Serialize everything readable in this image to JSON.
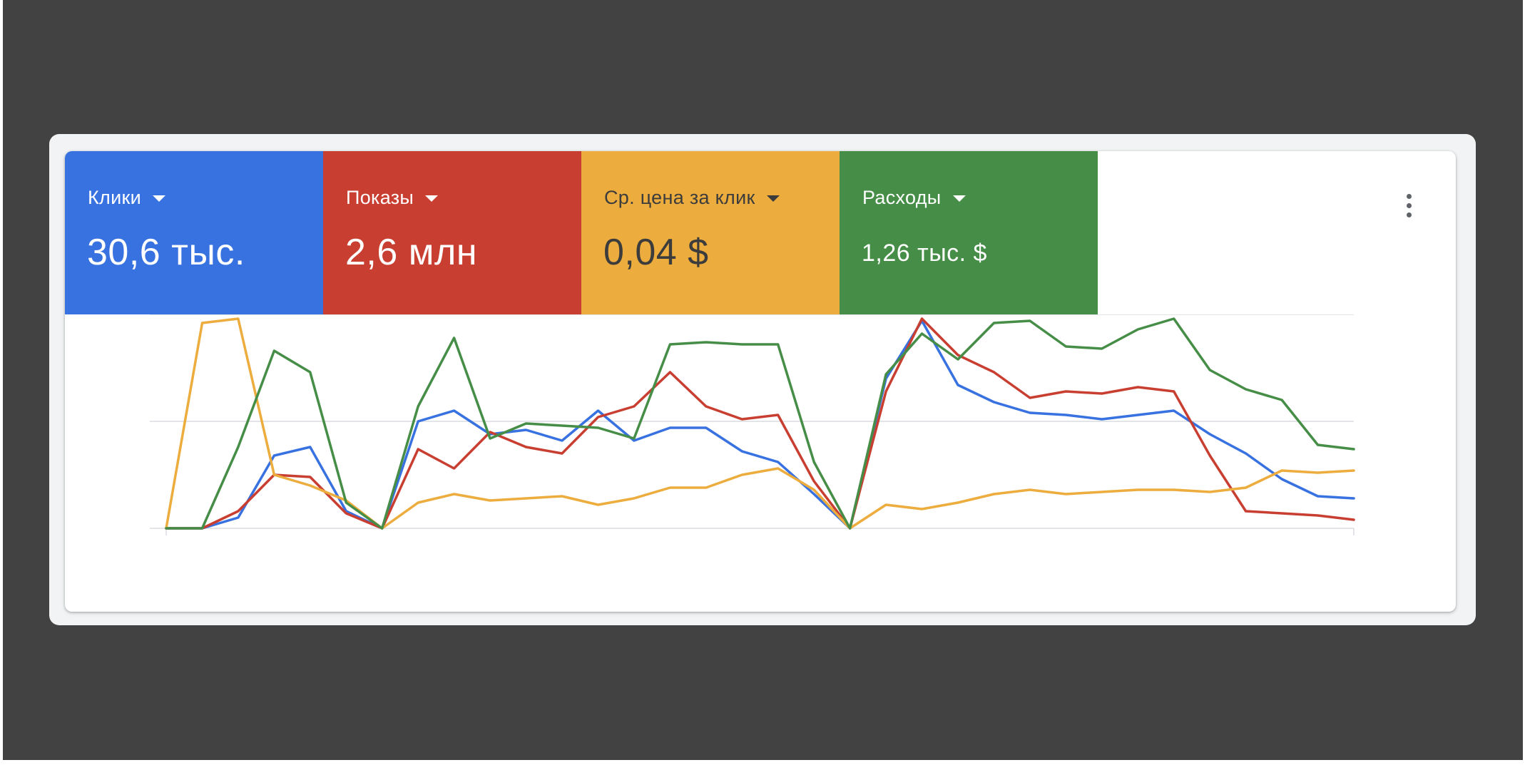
{
  "metrics": [
    {
      "label": "Клики",
      "value": "30,6 тыс.",
      "bg": "#3871e0",
      "fg": "#ffffff"
    },
    {
      "label": "Показы",
      "value": "2,6 млн",
      "bg": "#c83f31",
      "fg": "#ffffff"
    },
    {
      "label": "Ср. цена за клик",
      "value": "0,04 $",
      "bg": "#ecad3e",
      "fg": "#3c3c3c"
    },
    {
      "label": "Расходы",
      "value": "1,26 тыс. $",
      "bg": "#468e47",
      "fg": "#ffffff"
    }
  ],
  "menu": {
    "icon": "more-vert-icon"
  },
  "chart_data": {
    "type": "line",
    "ylim": [
      0,
      100
    ],
    "grid": true,
    "x": [
      1,
      2,
      3,
      4,
      5,
      6,
      7,
      8,
      9,
      10,
      11,
      12,
      13,
      14,
      15,
      16,
      17,
      18,
      19,
      20,
      21,
      22,
      23,
      24,
      25,
      26,
      27,
      28,
      29,
      30,
      31,
      32,
      33,
      34
    ],
    "series": [
      {
        "color": "#3871e0",
        "values": [
          0,
          0,
          5,
          34,
          38,
          8,
          0,
          50,
          55,
          44,
          46,
          41,
          55,
          41,
          47,
          47,
          36,
          31,
          16,
          0,
          70,
          97,
          67,
          59,
          54,
          53,
          51,
          53,
          55,
          44,
          35,
          23,
          15,
          14
        ]
      },
      {
        "color": "#c83f31",
        "values": [
          0,
          0,
          8,
          25,
          24,
          7,
          0,
          37,
          28,
          45,
          38,
          35,
          52,
          57,
          73,
          57,
          51,
          53,
          22,
          0,
          64,
          98,
          81,
          73,
          61,
          64,
          63,
          66,
          64,
          34,
          8,
          7,
          6,
          4
        ]
      },
      {
        "color": "#ecad3e",
        "values": [
          0,
          96,
          98,
          25,
          20,
          13,
          0,
          12,
          16,
          13,
          14,
          15,
          11,
          14,
          19,
          19,
          25,
          28,
          18,
          0,
          11,
          9,
          12,
          16,
          18,
          16,
          17,
          18,
          18,
          17,
          19,
          27,
          26,
          27
        ]
      },
      {
        "color": "#468e47",
        "values": [
          0,
          0,
          38,
          83,
          73,
          12,
          0,
          57,
          89,
          42,
          49,
          48,
          47,
          42,
          86,
          87,
          86,
          86,
          31,
          0,
          72,
          91,
          79,
          96,
          97,
          85,
          84,
          93,
          98,
          74,
          65,
          60,
          39,
          37
        ]
      }
    ]
  }
}
